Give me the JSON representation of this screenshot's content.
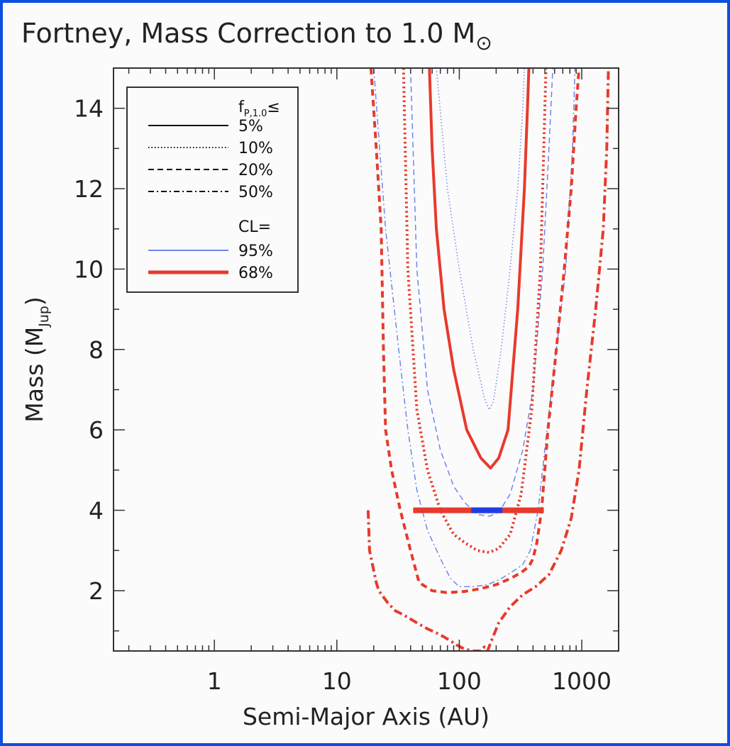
{
  "chart_data": {
    "type": "line",
    "title": "Fortney, Mass Correction to 1.0 M",
    "title_symbol": "⊙",
    "xlabel": "Semi-Major Axis (AU)",
    "ylabel_main": "Mass (M",
    "ylabel_sub": "Jup",
    "ylabel_close": ")",
    "x_scale": "log",
    "xlim": [
      0.15,
      2000
    ],
    "ylim": [
      0.5,
      15
    ],
    "x_ticks": [
      {
        "value": 1,
        "label": "1"
      },
      {
        "value": 10,
        "label": "10"
      },
      {
        "value": 100,
        "label": "100"
      },
      {
        "value": 1000,
        "label": "1000"
      }
    ],
    "y_ticks": [
      {
        "value": 2,
        "label": "2"
      },
      {
        "value": 4,
        "label": "4"
      },
      {
        "value": 6,
        "label": "6"
      },
      {
        "value": 8,
        "label": "8"
      },
      {
        "value": 10,
        "label": "10"
      },
      {
        "value": 12,
        "label": "12"
      },
      {
        "value": 14,
        "label": "14"
      }
    ],
    "legend": {
      "placement": "top-left",
      "header_f": "f",
      "header_sub": "P,1.0",
      "header_op": "≤",
      "cl_header": "CL=",
      "styles": [
        {
          "label": "5%",
          "dash": "solid"
        },
        {
          "label": "10%",
          "dash": "dotted"
        },
        {
          "label": "20%",
          "dash": "dashed"
        },
        {
          "label": "50%",
          "dash": "dashdot"
        }
      ],
      "cls": [
        {
          "label": "95%",
          "color": "#6f84ee"
        },
        {
          "label": "68%",
          "color": "#e83a2c"
        }
      ]
    },
    "colors": {
      "cl95": "#6f84ee",
      "cl68": "#e83a2c",
      "marker_inner": "#1f3de6"
    },
    "series": [
      {
        "cl": "95%",
        "style": "dotted",
        "x": [
          65,
          80,
          100,
          130,
          160,
          175,
          190,
          220,
          260,
          300,
          330,
          340
        ],
        "y": [
          15,
          12,
          10,
          8,
          6.8,
          6.5,
          6.7,
          8,
          10,
          12,
          14,
          15
        ]
      },
      {
        "cl": "95%",
        "style": "dashed",
        "x": [
          40,
          45,
          55,
          70,
          90,
          110,
          140,
          175,
          210,
          260,
          330,
          400,
          480,
          540,
          580
        ],
        "y": [
          15,
          10,
          7,
          5.5,
          4.6,
          4.2,
          3.9,
          3.85,
          3.95,
          4.4,
          5.5,
          7,
          10,
          13,
          15
        ]
      },
      {
        "cl": "95%",
        "style": "dashdot",
        "x": [
          20,
          25,
          32,
          38,
          45,
          55,
          70,
          85,
          100,
          130,
          170,
          220,
          280,
          330,
          380,
          440,
          520,
          620,
          740,
          840,
          880
        ],
        "y": [
          15,
          11,
          8,
          6,
          4.5,
          3.5,
          2.8,
          2.3,
          2.1,
          2.1,
          2.15,
          2.3,
          2.5,
          2.65,
          3,
          4,
          6,
          8,
          10,
          13,
          15
        ]
      },
      {
        "cl": "68%",
        "style": "solid",
        "x": [
          57,
          60,
          65,
          75,
          90,
          115,
          150,
          180,
          210,
          250,
          300,
          340,
          360,
          370
        ],
        "y": [
          15,
          13,
          11,
          9,
          7.5,
          6,
          5.3,
          5.05,
          5.3,
          6,
          9,
          12,
          14,
          15
        ]
      },
      {
        "cl": "68%",
        "style": "dotted",
        "x": [
          35,
          38,
          45,
          55,
          70,
          90,
          110,
          140,
          175,
          210,
          260,
          320,
          390,
          460,
          510
        ],
        "y": [
          15,
          10,
          6.5,
          5,
          4,
          3.4,
          3.2,
          3.0,
          2.95,
          3.05,
          3.4,
          4.4,
          6.5,
          10,
          15
        ]
      },
      {
        "cl": "68%",
        "style": "dashed",
        "x": [
          19,
          21,
          23,
          24,
          25,
          28,
          33,
          40,
          47,
          60,
          80,
          110,
          150,
          200,
          260,
          320,
          370,
          400,
          430,
          470,
          530,
          620,
          720,
          820,
          900,
          950
        ],
        "y": [
          15,
          13,
          11,
          8,
          6,
          5,
          4,
          3,
          2.2,
          2.0,
          1.95,
          1.98,
          2.05,
          2.15,
          2.3,
          2.45,
          2.6,
          2.8,
          3.2,
          4,
          6,
          8,
          10,
          12,
          14,
          15
        ]
      },
      {
        "cl": "68%",
        "style": "dashdot",
        "x": [
          18,
          18.5,
          20,
          21,
          22,
          26,
          30,
          35,
          45,
          55,
          65,
          75,
          85,
          95,
          110,
          130,
          150,
          160,
          170,
          180,
          210,
          260,
          330,
          420,
          540,
          680,
          820,
          950,
          1100,
          1300,
          1500,
          1600,
          1650
        ],
        "y": [
          4,
          3,
          2.5,
          2.2,
          2,
          1.7,
          1.5,
          1.4,
          1.2,
          1.05,
          0.95,
          0.85,
          0.75,
          0.65,
          0.55,
          0.5,
          0.5,
          0.6,
          0.5,
          0.7,
          1.2,
          1.6,
          1.9,
          2.1,
          2.4,
          3,
          3.8,
          5,
          7,
          9,
          11,
          13,
          15
        ]
      }
    ],
    "marker_bar": {
      "y": 4,
      "x_start": 42,
      "x_end": 490,
      "inner_x_start": 125,
      "inner_x_end": 225
    }
  }
}
